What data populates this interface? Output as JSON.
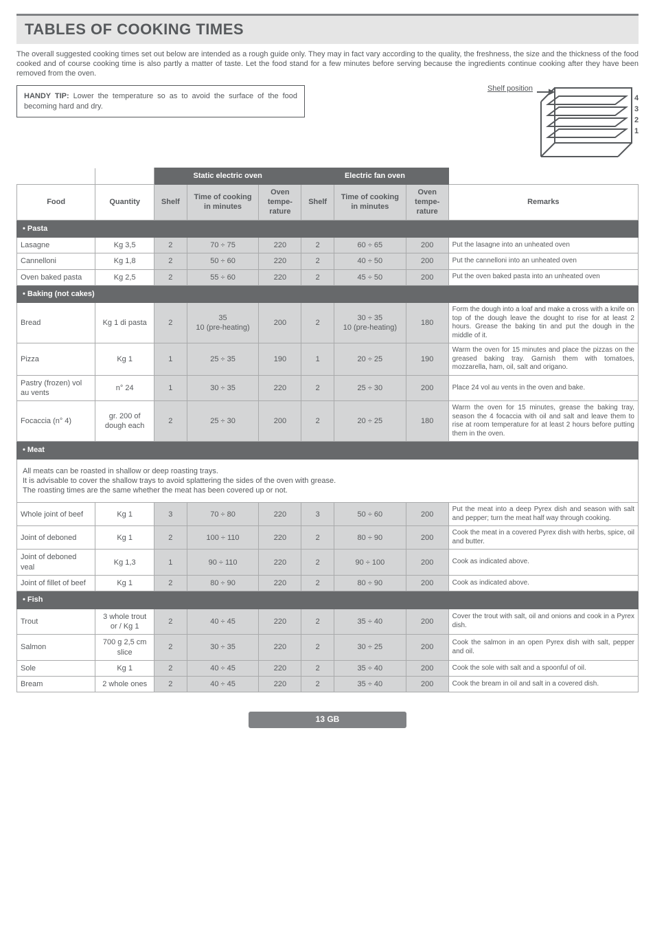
{
  "title": "TABLES OF COOKING TIMES",
  "intro": "The overall suggested cooking times set out below are intended as a rough guide only. They may in fact vary according to the quality, the freshness, the size and the thickness of the food cooked and of course cooking time is also partly a matter of taste. Let the food stand for a few minutes before serving because the ingredients continue cooking after they have been removed from the oven.",
  "tip_label": "HANDY TIP:",
  "tip_text": " Lower the temperature so as to avoid the surface of the food becoming hard and dry.",
  "shelf_caption": "Shelf position",
  "headers": {
    "food": "Food",
    "qty": "Quantity",
    "static": "Static electric oven",
    "fan": "Electric fan oven",
    "shelf": "Shelf",
    "time": "Time of cooking in minutes",
    "temp": "Oven tempe-rature",
    "remarks": "Remarks"
  },
  "sections": {
    "pasta": "• Pasta",
    "baking": "• Baking (not cakes)",
    "meat": "• Meat",
    "fish": "• Fish"
  },
  "rows": {
    "lasagne": {
      "food": "Lasagne",
      "qty": "Kg 3,5",
      "s1": "2",
      "t1": "70 ÷ 75",
      "o1": "220",
      "s2": "2",
      "t2": "60 ÷ 65",
      "o2": "200",
      "r": "Put the lasagne into an unheated oven"
    },
    "cannelloni": {
      "food": "Cannelloni",
      "qty": "Kg 1,8",
      "s1": "2",
      "t1": "50 ÷ 60",
      "o1": "220",
      "s2": "2",
      "t2": "40 ÷ 50",
      "o2": "200",
      "r": "Put the cannelloni into an unheated oven"
    },
    "baked": {
      "food": "Oven baked pasta",
      "qty": "Kg 2,5",
      "s1": "2",
      "t1": "55 ÷ 60",
      "o1": "220",
      "s2": "2",
      "t2": "45 ÷ 50",
      "o2": "200",
      "r": "Put the oven baked pasta into an unheated oven"
    },
    "bread": {
      "food": "Bread",
      "qty": "Kg 1 di pasta",
      "s1": "2",
      "t1": "35\n10 (pre-heating)",
      "o1": "200",
      "s2": "2",
      "t2": "30 ÷ 35\n10 (pre-heating)",
      "o2": "180",
      "r": "Form the dough into a loaf and make a cross with a knife on top of the dough leave the dought to rise for at least 2 hours. Grease the baking tin and put the dough in the middle of it."
    },
    "pizza": {
      "food": "Pizza",
      "qty": "Kg 1",
      "s1": "1",
      "t1": "25 ÷ 35",
      "o1": "190",
      "s2": "1",
      "t2": "20 ÷ 25",
      "o2": "190",
      "r": "Warm the oven for 15 minutes and place the pizzas on the greased baking tray. Garnish them with tomatoes, mozzarella, ham, oil, salt and origano."
    },
    "pastry": {
      "food": "Pastry (frozen) vol au vents",
      "qty": "n° 24",
      "s1": "1",
      "t1": "30 ÷ 35",
      "o1": "220",
      "s2": "2",
      "t2": "25 ÷ 30",
      "o2": "200",
      "r": "Place 24 vol au vents in the oven and bake."
    },
    "focaccia": {
      "food": "Focaccia (n° 4)",
      "qty": "gr. 200 of dough each",
      "s1": "2",
      "t1": "25 ÷ 30",
      "o1": "200",
      "s2": "2",
      "t2": "20 ÷ 25",
      "o2": "180",
      "r": "Warm the oven for 15 minutes, grease the baking tray, season the 4 focaccia with oil and salt and leave them to rise at room temperature for at least 2 hours before putting them in the oven."
    },
    "beef": {
      "food": "Whole joint of beef",
      "qty": "Kg 1",
      "s1": "3",
      "t1": "70 ÷ 80",
      "o1": "220",
      "s2": "3",
      "t2": "50 ÷ 60",
      "o2": "200",
      "r": "Put the meat into a deep Pyrex dish and season with salt and pepper; turn the meat half way through cooking."
    },
    "deboned": {
      "food": "Joint of deboned",
      "qty": "Kg 1",
      "s1": "2",
      "t1": "100 ÷ 110",
      "o1": "220",
      "s2": "2",
      "t2": "80 ÷ 90",
      "o2": "200",
      "r": "Cook the meat in a covered Pyrex dish with herbs, spice, oil and butter."
    },
    "veal": {
      "food": "Joint of deboned veal",
      "qty": "Kg 1,3",
      "s1": "1",
      "t1": "90 ÷ 110",
      "o1": "220",
      "s2": "2",
      "t2": "90 ÷ 100",
      "o2": "200",
      "r": "Cook as indicated above."
    },
    "fillet": {
      "food": "Joint of fillet of beef",
      "qty": "Kg 1",
      "s1": "2",
      "t1": "80 ÷ 90",
      "o1": "220",
      "s2": "2",
      "t2": "80 ÷ 90",
      "o2": "200",
      "r": "Cook as indicated above."
    },
    "trout": {
      "food": "Trout",
      "qty": "3 whole trout or / Kg 1",
      "s1": "2",
      "t1": "40 ÷ 45",
      "o1": "220",
      "s2": "2",
      "t2": "35 ÷ 40",
      "o2": "200",
      "r": "Cover the trout with salt, oil and onions and cook in a Pyrex dish."
    },
    "salmon": {
      "food": "Salmon",
      "qty": "700 g 2,5 cm slice",
      "s1": "2",
      "t1": "30 ÷ 35",
      "o1": "220",
      "s2": "2",
      "t2": "30 ÷ 25",
      "o2": "200",
      "r": "Cook the salmon in an open Pyrex dish with salt, pepper and oil."
    },
    "sole": {
      "food": "Sole",
      "qty": "Kg 1",
      "s1": "2",
      "t1": "40 ÷ 45",
      "o1": "220",
      "s2": "2",
      "t2": "35 ÷ 40",
      "o2": "200",
      "r": "Cook the sole with salt and a spoonful of oil."
    },
    "bream": {
      "food": "Bream",
      "qty": "2 whole ones",
      "s1": "2",
      "t1": "40 ÷ 45",
      "o1": "220",
      "s2": "2",
      "t2": "35 ÷ 40",
      "o2": "200",
      "r": "Cook the bream in oil and salt in a covered dish."
    }
  },
  "meat_note": "All meats can be roasted in shallow or deep roasting trays.\nIt is advisable to cover the shallow trays to avoid splattering the sides of the oven with grease.\nThe roasting times are the same whether the meat has been covered up or not.",
  "footer": "13 GB",
  "shelf_labels": [
    "4",
    "3",
    "2",
    "1"
  ]
}
